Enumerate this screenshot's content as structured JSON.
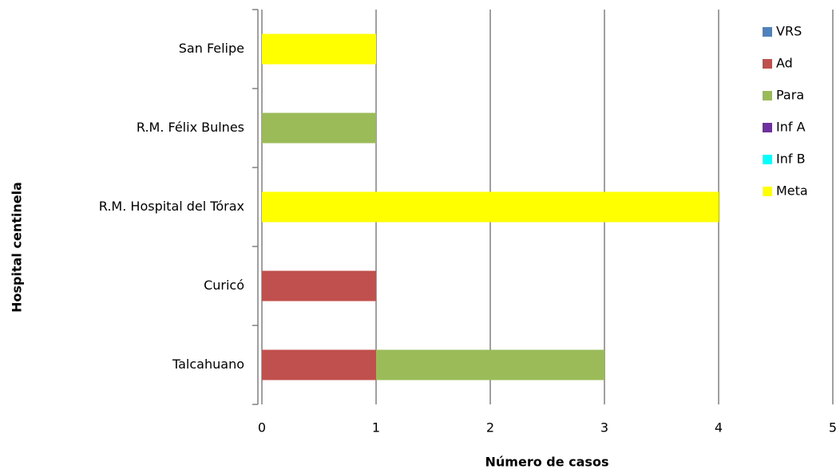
{
  "chart_data": {
    "type": "stacked-bar-horizontal",
    "x_label": "Número de casos",
    "y_label": "Hospital centinela",
    "categories": [
      "Talcahuano",
      "Curicó",
      "R.M. Hospital del Tórax",
      "R.M. Félix Bulnes",
      "San Felipe"
    ],
    "series": [
      {
        "name": "VRS",
        "color": "#4f81bd",
        "values": [
          0,
          0,
          0,
          0,
          0
        ]
      },
      {
        "name": "Ad",
        "color": "#c0504d",
        "values": [
          1,
          1,
          0,
          0,
          0
        ]
      },
      {
        "name": "Para",
        "color": "#9bbb59",
        "values": [
          2,
          0,
          0,
          1,
          0
        ]
      },
      {
        "name": "Inf A",
        "color": "#7030a0",
        "values": [
          0,
          0,
          0,
          0,
          0
        ]
      },
      {
        "name": "Inf B",
        "color": "#00ffff",
        "values": [
          0,
          0,
          0,
          0,
          0
        ]
      },
      {
        "name": "Meta",
        "color": "#ffff00",
        "values": [
          0,
          0,
          4,
          0,
          1
        ]
      }
    ],
    "xlim": [
      0,
      5
    ],
    "xticks": [
      0,
      1,
      2,
      3,
      4,
      5
    ],
    "grid": true,
    "legend": "right"
  }
}
